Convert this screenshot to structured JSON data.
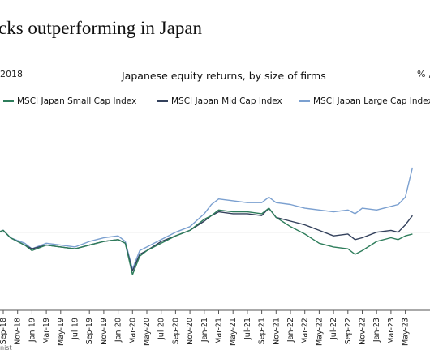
{
  "header": {
    "headline": "cks outperforming in Japan",
    "left_note": "2018",
    "subtitle": "Japanese equity returns, by size of firms",
    "units": "% ,",
    "source": "nist"
  },
  "chart_data": {
    "type": "line",
    "title": "Japanese equity returns, by size of firms",
    "xlabel": "",
    "ylabel": "",
    "x_ticks": [
      "Sep-18",
      "Nov-18",
      "Jan-19",
      "Mar-19",
      "May-19",
      "Jul-19",
      "Sep-19",
      "Nov-19",
      "Jan-20",
      "Mar-20",
      "May-20",
      "Jul-20",
      "Sep-20",
      "Nov-20",
      "Jan-21",
      "Mar-21",
      "May-21",
      "Jul-21",
      "Sep-21",
      "Nov-21",
      "Jan-22",
      "Mar-22",
      "May-22",
      "Jul-22",
      "Sep-22",
      "Nov-22",
      "Jan-23",
      "Mar-23",
      "May-23"
    ],
    "x": [
      "Jul-18",
      "Sep-18",
      "Oct-18",
      "Dec-18",
      "Jan-19",
      "Mar-19",
      "May-19",
      "Jul-19",
      "Sep-19",
      "Nov-19",
      "Jan-20",
      "Feb-20",
      "Mar-20",
      "Apr-20",
      "May-20",
      "Jul-20",
      "Sep-20",
      "Nov-20",
      "Jan-21",
      "Feb-21",
      "Mar-21",
      "May-21",
      "Jul-21",
      "Sep-21",
      "Oct-21",
      "Nov-21",
      "Jan-22",
      "Mar-22",
      "May-22",
      "Jul-22",
      "Sep-22",
      "Oct-22",
      "Nov-22",
      "Jan-23",
      "Mar-23",
      "Apr-23",
      "May-23",
      "Jun-23"
    ],
    "ylim": [
      -30,
      60
    ],
    "zero_line": 0,
    "grid": false,
    "legend_position": "top",
    "series": [
      {
        "name": "MSCI Japan Small Cap Index",
        "color": "#2e7d5b",
        "values": [
          -2,
          1,
          -3,
          -7,
          -10,
          -7,
          -8,
          -9,
          -7,
          -5,
          -4,
          -6,
          -23,
          -13,
          -10,
          -6,
          -2,
          1,
          7,
          9,
          12,
          11,
          11,
          10,
          13,
          8,
          3,
          -1,
          -6,
          -8,
          -9,
          -12,
          -10,
          -5,
          -3,
          -4,
          -2,
          -1
        ]
      },
      {
        "name": "MSCI Japan Mid Cap Index",
        "color": "#33415c",
        "values": [
          -2,
          1,
          -3,
          -7,
          -9,
          -7,
          -8,
          -9,
          -7,
          -5,
          -4,
          -6,
          -21,
          -12,
          -10,
          -5,
          -2,
          1,
          6,
          9,
          11,
          10,
          10,
          9,
          13,
          8,
          6,
          4,
          1,
          -2,
          -1,
          -4,
          -3,
          0,
          1,
          0,
          4,
          9
        ]
      },
      {
        "name": "MSCI Japan Large Cap Index",
        "color": "#7ba0d0",
        "values": [
          -2,
          1,
          -3,
          -6,
          -9,
          -6,
          -7,
          -8,
          -5,
          -3,
          -2,
          -5,
          -20,
          -10,
          -8,
          -4,
          0,
          3,
          10,
          15,
          18,
          17,
          16,
          16,
          19,
          16,
          15,
          13,
          12,
          11,
          12,
          10,
          13,
          12,
          14,
          15,
          19,
          35
        ]
      }
    ]
  }
}
